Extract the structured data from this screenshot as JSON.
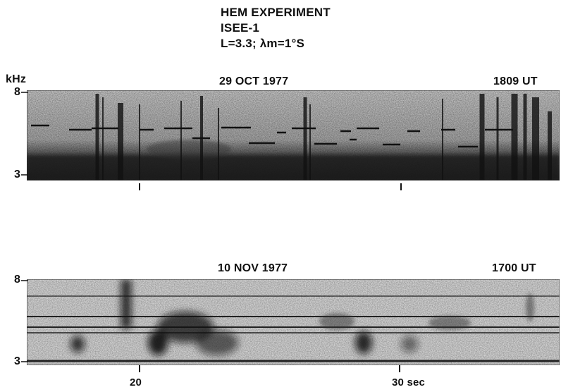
{
  "header": {
    "line1": "HEM EXPERIMENT",
    "line2": "ISEE-1",
    "line3": "L=3.3; λm=1°S"
  },
  "panel_top": {
    "unit": "kHz",
    "date": "29 OCT 1977",
    "time": "1809 UT",
    "y_top": "8",
    "y_bottom": "3"
  },
  "panel_bottom": {
    "date": "10 NOV 1977",
    "time": "1700 UT",
    "y_top": "8",
    "y_bottom": "3",
    "x_label_1": "20",
    "x_label_2": "30 sec"
  }
}
